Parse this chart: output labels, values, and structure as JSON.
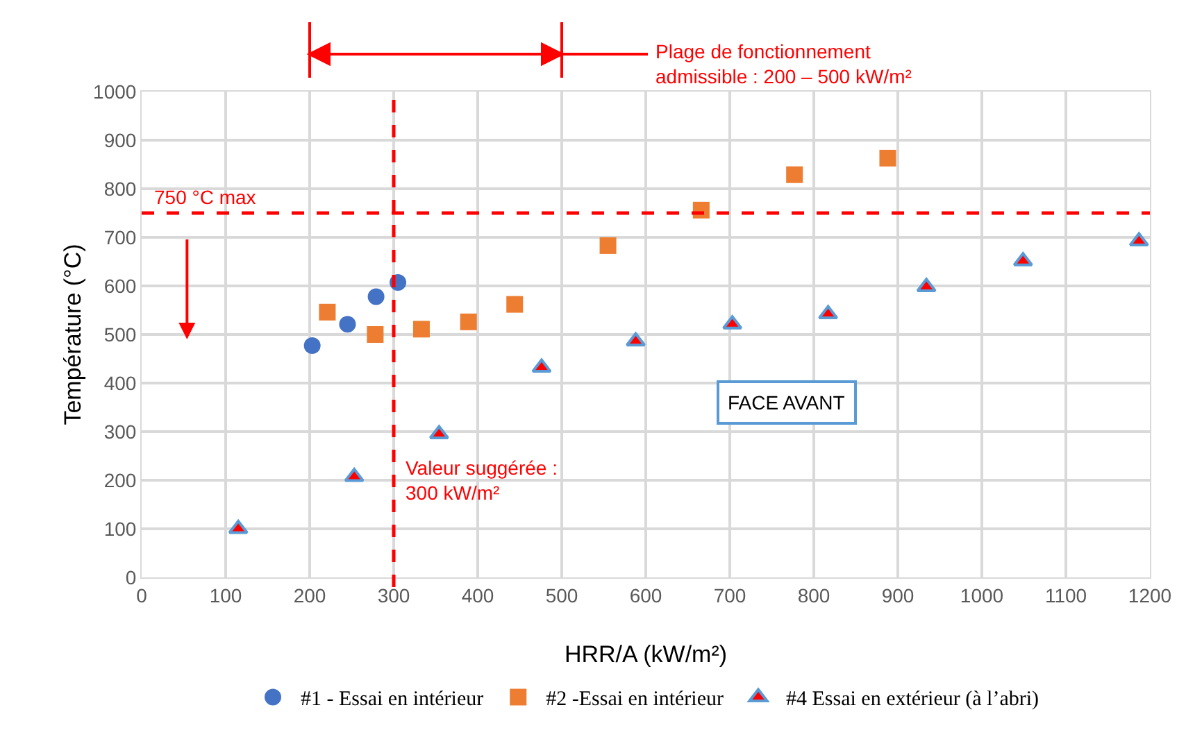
{
  "chart_data": {
    "type": "scatter",
    "xlabel": "HRR/A (kW/m²)",
    "ylabel": "Température (°C)",
    "xlim": [
      0,
      1200
    ],
    "xticks": [
      0,
      100,
      200,
      300,
      400,
      500,
      600,
      700,
      800,
      900,
      1000,
      1100,
      1200
    ],
    "ylim": [
      0,
      1000
    ],
    "yticks": [
      0,
      100,
      200,
      300,
      400,
      500,
      600,
      700,
      800,
      900,
      1000
    ],
    "grid": true,
    "legend": "bottom",
    "series": [
      {
        "name": "#1 - Essai en intérieur",
        "color": "#4472c4",
        "marker": "circle",
        "x": [
          203,
          245,
          279,
          305
        ],
        "values": [
          477,
          521,
          578,
          607
        ]
      },
      {
        "name": "#2 -Essai en intérieur",
        "color": "#ed7d31",
        "marker": "square",
        "x": [
          221,
          278,
          333,
          389,
          444,
          555,
          666,
          777,
          888
        ],
        "values": [
          546,
          500,
          511,
          526,
          562,
          683,
          756,
          829,
          863
        ]
      },
      {
        "name": "#4 Essai en extérieur (à l’abri)",
        "color": "#ff0000",
        "marker": "triangle",
        "x": [
          115,
          253,
          354,
          476,
          588,
          703,
          817,
          934,
          1049,
          1187
        ],
        "values": [
          100,
          207,
          295,
          432,
          486,
          521,
          542,
          598,
          651,
          692
        ]
      }
    ],
    "ref_lines": [
      {
        "axis": "x",
        "value": 300,
        "label": "Valeur suggérée :\n300 kW/m²",
        "color": "#ff0000",
        "line_style": "dashed"
      },
      {
        "axis": "y",
        "value": 750,
        "label": "750 °C max",
        "color": "#ff0000",
        "line_style": "dashed"
      }
    ],
    "annotations": [
      "Plage de fonctionnement\nadmissible : 200 – 500 kW/m²",
      "FACE AVANT"
    ]
  }
}
